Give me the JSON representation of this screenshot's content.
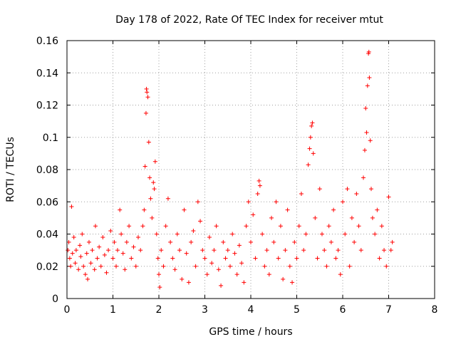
{
  "chart_data": {
    "type": "scatter",
    "title": "Day 178 of 2022, Rate Of TEC Index for receiver mtut",
    "xlabel": "GPS time / hours",
    "ylabel": "ROTI / TECUs",
    "xlim": [
      0,
      8
    ],
    "ylim": [
      0,
      0.16
    ],
    "xticks": [
      0,
      1,
      2,
      3,
      4,
      5,
      6,
      7,
      8
    ],
    "xtick_labels": [
      "0",
      "1",
      "2",
      "3",
      "4",
      "5",
      "6",
      "7",
      "8"
    ],
    "yticks": [
      0,
      0.02,
      0.04,
      0.06,
      0.08,
      0.1,
      0.12,
      0.14,
      0.16
    ],
    "ytick_labels": [
      "0",
      "0.02",
      "0.04",
      "0.06",
      "0.08",
      "0.1",
      "0.12",
      "0.14",
      "0.16"
    ],
    "grid": true,
    "marker": "+",
    "color": "#ff0000",
    "series": [
      {
        "name": "ROTI",
        "points": [
          [
            0.02,
            0.03
          ],
          [
            0.04,
            0.035
          ],
          [
            0.06,
            0.025
          ],
          [
            0.08,
            0.02
          ],
          [
            0.1,
            0.057
          ],
          [
            0.12,
            0.028
          ],
          [
            0.15,
            0.038
          ],
          [
            0.18,
            0.022
          ],
          [
            0.2,
            0.03
          ],
          [
            0.25,
            0.018
          ],
          [
            0.28,
            0.033
          ],
          [
            0.3,
            0.026
          ],
          [
            0.33,
            0.04
          ],
          [
            0.36,
            0.02
          ],
          [
            0.4,
            0.015
          ],
          [
            0.43,
            0.028
          ],
          [
            0.45,
            0.012
          ],
          [
            0.48,
            0.035
          ],
          [
            0.52,
            0.022
          ],
          [
            0.55,
            0.03
          ],
          [
            0.6,
            0.018
          ],
          [
            0.62,
            0.045
          ],
          [
            0.66,
            0.025
          ],
          [
            0.7,
            0.032
          ],
          [
            0.74,
            0.02
          ],
          [
            0.78,
            0.038
          ],
          [
            0.82,
            0.027
          ],
          [
            0.86,
            0.016
          ],
          [
            0.9,
            0.03
          ],
          [
            0.95,
            0.042
          ],
          [
            1.0,
            0.025
          ],
          [
            1.03,
            0.035
          ],
          [
            1.07,
            0.02
          ],
          [
            1.1,
            0.03
          ],
          [
            1.15,
            0.055
          ],
          [
            1.18,
            0.04
          ],
          [
            1.22,
            0.028
          ],
          [
            1.26,
            0.018
          ],
          [
            1.3,
            0.035
          ],
          [
            1.35,
            0.045
          ],
          [
            1.4,
            0.025
          ],
          [
            1.45,
            0.032
          ],
          [
            1.5,
            0.02
          ],
          [
            1.55,
            0.038
          ],
          [
            1.6,
            0.03
          ],
          [
            1.65,
            0.045
          ],
          [
            1.68,
            0.055
          ],
          [
            1.7,
            0.082
          ],
          [
            1.72,
            0.115
          ],
          [
            1.73,
            0.13
          ],
          [
            1.74,
            0.128
          ],
          [
            1.76,
            0.125
          ],
          [
            1.78,
            0.097
          ],
          [
            1.8,
            0.075
          ],
          [
            1.82,
            0.062
          ],
          [
            1.85,
            0.05
          ],
          [
            1.88,
            0.072
          ],
          [
            1.9,
            0.068
          ],
          [
            1.92,
            0.085
          ],
          [
            1.95,
            0.04
          ],
          [
            1.98,
            0.025
          ],
          [
            2.0,
            0.015
          ],
          [
            2.02,
            0.007
          ],
          [
            2.05,
            0.03
          ],
          [
            2.1,
            0.02
          ],
          [
            2.15,
            0.045
          ],
          [
            2.2,
            0.062
          ],
          [
            2.25,
            0.035
          ],
          [
            2.3,
            0.025
          ],
          [
            2.35,
            0.018
          ],
          [
            2.4,
            0.04
          ],
          [
            2.45,
            0.03
          ],
          [
            2.5,
            0.012
          ],
          [
            2.55,
            0.055
          ],
          [
            2.6,
            0.028
          ],
          [
            2.65,
            0.01
          ],
          [
            2.7,
            0.035
          ],
          [
            2.75,
            0.042
          ],
          [
            2.8,
            0.02
          ],
          [
            2.85,
            0.06
          ],
          [
            2.9,
            0.048
          ],
          [
            2.95,
            0.03
          ],
          [
            3.0,
            0.025
          ],
          [
            3.05,
            0.015
          ],
          [
            3.1,
            0.038
          ],
          [
            3.15,
            0.022
          ],
          [
            3.2,
            0.03
          ],
          [
            3.25,
            0.045
          ],
          [
            3.3,
            0.018
          ],
          [
            3.35,
            0.008
          ],
          [
            3.4,
            0.035
          ],
          [
            3.45,
            0.025
          ],
          [
            3.5,
            0.03
          ],
          [
            3.55,
            0.02
          ],
          [
            3.6,
            0.04
          ],
          [
            3.65,
            0.028
          ],
          [
            3.7,
            0.015
          ],
          [
            3.75,
            0.033
          ],
          [
            3.8,
            0.022
          ],
          [
            3.85,
            0.01
          ],
          [
            3.9,
            0.045
          ],
          [
            3.95,
            0.06
          ],
          [
            4.0,
            0.035
          ],
          [
            4.05,
            0.052
          ],
          [
            4.1,
            0.025
          ],
          [
            4.15,
            0.065
          ],
          [
            4.18,
            0.073
          ],
          [
            4.2,
            0.07
          ],
          [
            4.25,
            0.04
          ],
          [
            4.3,
            0.02
          ],
          [
            4.35,
            0.03
          ],
          [
            4.4,
            0.015
          ],
          [
            4.45,
            0.05
          ],
          [
            4.5,
            0.035
          ],
          [
            4.55,
            0.06
          ],
          [
            4.6,
            0.025
          ],
          [
            4.65,
            0.045
          ],
          [
            4.7,
            0.012
          ],
          [
            4.75,
            0.03
          ],
          [
            4.8,
            0.055
          ],
          [
            4.85,
            0.02
          ],
          [
            4.9,
            0.01
          ],
          [
            4.95,
            0.035
          ],
          [
            5.0,
            0.025
          ],
          [
            5.05,
            0.045
          ],
          [
            5.1,
            0.065
          ],
          [
            5.15,
            0.03
          ],
          [
            5.2,
            0.04
          ],
          [
            5.25,
            0.083
          ],
          [
            5.28,
            0.093
          ],
          [
            5.3,
            0.1
          ],
          [
            5.32,
            0.107
          ],
          [
            5.34,
            0.109
          ],
          [
            5.36,
            0.09
          ],
          [
            5.4,
            0.05
          ],
          [
            5.45,
            0.025
          ],
          [
            5.5,
            0.068
          ],
          [
            5.55,
            0.04
          ],
          [
            5.6,
            0.03
          ],
          [
            5.65,
            0.02
          ],
          [
            5.7,
            0.045
          ],
          [
            5.75,
            0.035
          ],
          [
            5.8,
            0.055
          ],
          [
            5.85,
            0.025
          ],
          [
            5.9,
            0.03
          ],
          [
            5.95,
            0.015
          ],
          [
            6.0,
            0.06
          ],
          [
            6.05,
            0.04
          ],
          [
            6.1,
            0.068
          ],
          [
            6.15,
            0.02
          ],
          [
            6.2,
            0.05
          ],
          [
            6.25,
            0.035
          ],
          [
            6.3,
            0.065
          ],
          [
            6.35,
            0.045
          ],
          [
            6.4,
            0.03
          ],
          [
            6.45,
            0.075
          ],
          [
            6.48,
            0.092
          ],
          [
            6.5,
            0.118
          ],
          [
            6.52,
            0.103
          ],
          [
            6.54,
            0.132
          ],
          [
            6.56,
            0.152
          ],
          [
            6.57,
            0.153
          ],
          [
            6.58,
            0.137
          ],
          [
            6.6,
            0.098
          ],
          [
            6.62,
            0.068
          ],
          [
            6.65,
            0.05
          ],
          [
            6.7,
            0.04
          ],
          [
            6.75,
            0.055
          ],
          [
            6.8,
            0.025
          ],
          [
            6.85,
            0.045
          ],
          [
            6.9,
            0.03
          ],
          [
            6.95,
            0.02
          ],
          [
            7.0,
            0.063
          ],
          [
            7.05,
            0.03
          ],
          [
            7.08,
            0.035
          ]
        ]
      }
    ]
  }
}
